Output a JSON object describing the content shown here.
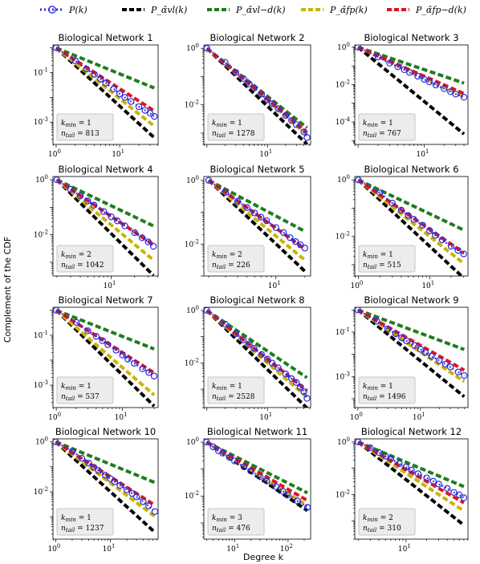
{
  "legend": {
    "labels": [
      "P(k)",
      "P_α̂vl(k)",
      "P_α̂vl−d(k)",
      "P_α̂fp(k)",
      "P_α̂fp−d(k)"
    ],
    "colors": [
      "#2b2bdf",
      "#000000",
      "#1e7d1e",
      "#c8b400",
      "#e0141e"
    ]
  },
  "ylabel": "Complement of the CDF",
  "xlabel": "Degree k",
  "chart_data": [
    {
      "type": "line",
      "title": "Biological Network 1",
      "kmin": 1,
      "ntail": 813,
      "kmax": 35,
      "ymin_log": -3.9,
      "yticks": [
        -1,
        -3
      ],
      "xticks": [
        0,
        1
      ],
      "slopes": {
        "data": -1.9,
        "vl": -2.35,
        "vld": -1.05,
        "fp": -2.05,
        "fpd": -1.65
      },
      "series": [
        {
          "name": "P(k)",
          "x": [
            1,
            2,
            3,
            4,
            5,
            6,
            8,
            10,
            12,
            15,
            20,
            25,
            30,
            35
          ],
          "y": [
            1.0,
            0.3,
            0.14,
            0.085,
            0.055,
            0.038,
            0.022,
            0.014,
            0.01,
            0.0068,
            0.0042,
            0.003,
            0.0023,
            0.0017
          ]
        }
      ]
    },
    {
      "type": "line",
      "title": "Biological Network 2",
      "kmin": 1,
      "ntail": 1278,
      "kmax": 45,
      "ymin_log": -3.4,
      "yticks": [
        0,
        -2
      ],
      "xticks": [
        1
      ],
      "slopes": {
        "data": -1.95,
        "vl": -2.05,
        "vld": -1.7,
        "fp": -1.85,
        "fpd": -1.8
      },
      "series": [
        {
          "name": "P(k)",
          "x": [
            1,
            2,
            3,
            4,
            5,
            6,
            8,
            10,
            12,
            15,
            20,
            25,
            30,
            40,
            45
          ],
          "y": [
            1.0,
            0.32,
            0.14,
            0.085,
            0.055,
            0.04,
            0.024,
            0.015,
            0.011,
            0.0073,
            0.0042,
            0.0028,
            0.002,
            0.0011,
            0.0007
          ]
        }
      ]
    },
    {
      "type": "line",
      "title": "Biological Network 3",
      "kmin": 1,
      "ntail": 767,
      "kmax": 40,
      "ymin_log": -5.2,
      "yticks": [
        0,
        -2,
        -4
      ],
      "xticks": [
        1
      ],
      "slopes": {
        "data": -1.6,
        "vl": -2.9,
        "vld": -1.2,
        "fp": -1.65,
        "fpd": -1.55
      },
      "series": [
        {
          "name": "P(k)",
          "x": [
            1,
            2,
            3,
            4,
            5,
            6,
            8,
            10,
            12,
            15,
            20,
            25,
            30,
            40
          ],
          "y": [
            1.0,
            0.3,
            0.14,
            0.09,
            0.062,
            0.045,
            0.028,
            0.019,
            0.014,
            0.0095,
            0.006,
            0.0042,
            0.0031,
            0.0021
          ]
        }
      ]
    },
    {
      "type": "line",
      "title": "Biological Network 4",
      "kmin": 2,
      "ntail": 1042,
      "kmax": 35,
      "ymin_log": -3.5,
      "yticks": [
        0,
        -2
      ],
      "xticks": [
        1
      ],
      "slopes": {
        "data": -1.95,
        "vl": -2.8,
        "vld": -1.35,
        "fp": -2.35,
        "fpd": -1.9
      },
      "series": [
        {
          "name": "P(k)",
          "x": [
            2,
            3,
            4,
            5,
            6,
            8,
            10,
            12,
            15,
            20,
            25,
            30,
            35
          ],
          "y": [
            1.0,
            0.45,
            0.26,
            0.17,
            0.12,
            0.07,
            0.045,
            0.032,
            0.021,
            0.012,
            0.0078,
            0.0055,
            0.0038
          ]
        }
      ]
    },
    {
      "type": "line",
      "title": "Biological Network 5",
      "kmin": 2,
      "ntail": 226,
      "kmax": 20,
      "ymin_log": -3.0,
      "yticks": [
        0,
        -2
      ],
      "xticks": [
        1
      ],
      "slopes": {
        "data": -2.2,
        "vl": -2.85,
        "vld": -1.6,
        "fp": -2.5,
        "fpd": -2.15
      },
      "series": [
        {
          "name": "P(k)",
          "x": [
            2,
            3,
            4,
            5,
            6,
            7,
            8,
            10,
            12,
            14,
            16,
            18,
            20
          ],
          "y": [
            1.0,
            0.42,
            0.22,
            0.14,
            0.095,
            0.07,
            0.054,
            0.033,
            0.023,
            0.016,
            0.012,
            0.0095,
            0.0075
          ]
        }
      ]
    },
    {
      "type": "line",
      "title": "Biological Network 6",
      "kmin": 1,
      "ntail": 515,
      "kmax": 30,
      "ymin_log": -3.4,
      "yticks": [
        0,
        -2
      ],
      "xticks": [
        0,
        1
      ],
      "slopes": {
        "data": -1.85,
        "vl": -2.35,
        "vld": -1.2,
        "fp": -2.0,
        "fpd": -1.75
      },
      "series": [
        {
          "name": "P(k)",
          "x": [
            1,
            2,
            3,
            4,
            5,
            6,
            8,
            10,
            12,
            15,
            20,
            25,
            30
          ],
          "y": [
            1.0,
            0.35,
            0.15,
            0.085,
            0.055,
            0.04,
            0.025,
            0.016,
            0.011,
            0.0075,
            0.0045,
            0.0032,
            0.0024
          ]
        }
      ]
    },
    {
      "type": "line",
      "title": "Biological Network 7",
      "kmin": 1,
      "ntail": 537,
      "kmax": 30,
      "ymin_log": -3.9,
      "yticks": [
        -1,
        -3
      ],
      "xticks": [
        0,
        1
      ],
      "slopes": {
        "data": -1.85,
        "vl": -2.6,
        "vld": -1.05,
        "fp": -2.3,
        "fpd": -1.7
      },
      "series": [
        {
          "name": "P(k)",
          "x": [
            1,
            2,
            3,
            4,
            5,
            6,
            8,
            10,
            12,
            15,
            20,
            25,
            30
          ],
          "y": [
            1.0,
            0.33,
            0.15,
            0.09,
            0.06,
            0.042,
            0.025,
            0.016,
            0.011,
            0.0075,
            0.0045,
            0.0032,
            0.0023
          ]
        }
      ]
    },
    {
      "type": "line",
      "title": "Biological Network 8",
      "kmin": 1,
      "ntail": 2528,
      "kmax": 45,
      "ymin_log": -3.7,
      "yticks": [
        0,
        -2
      ],
      "xticks": [
        1
      ],
      "slopes": {
        "data": -2.05,
        "vl": -2.25,
        "vld": -1.55,
        "fp": -2.0,
        "fpd": -1.85
      },
      "series": [
        {
          "name": "P(k)",
          "x": [
            1,
            2,
            3,
            4,
            5,
            6,
            8,
            10,
            12,
            15,
            20,
            25,
            30,
            35,
            40,
            45
          ],
          "y": [
            1.0,
            0.3,
            0.13,
            0.075,
            0.05,
            0.036,
            0.021,
            0.014,
            0.0098,
            0.0065,
            0.0038,
            0.0025,
            0.0018,
            0.0012,
            0.0008,
            0.00045
          ]
        }
      ]
    },
    {
      "type": "line",
      "title": "Biological Network 9",
      "kmin": 1,
      "ntail": 1496,
      "kmax": 50,
      "ymin_log": -4.4,
      "yticks": [
        -1,
        -3
      ],
      "xticks": [
        0,
        1
      ],
      "slopes": {
        "data": -1.75,
        "vl": -2.3,
        "vld": -1.05,
        "fp": -1.9,
        "fpd": -1.6
      },
      "series": [
        {
          "name": "P(k)",
          "x": [
            1,
            2,
            3,
            4,
            5,
            6,
            8,
            10,
            12,
            15,
            20,
            25,
            30,
            40,
            50
          ],
          "y": [
            1.0,
            0.31,
            0.14,
            0.085,
            0.056,
            0.04,
            0.025,
            0.017,
            0.012,
            0.0082,
            0.0052,
            0.0036,
            0.0027,
            0.0016,
            0.0011
          ]
        }
      ]
    },
    {
      "type": "line",
      "title": "Biological Network 10",
      "kmin": 1,
      "ntail": 1237,
      "kmax": 65,
      "ymin_log": -3.9,
      "yticks": [
        0,
        -2
      ],
      "xticks": [
        0,
        1
      ],
      "slopes": {
        "data": -1.45,
        "vl": -2.0,
        "vld": -0.9,
        "fp": -1.65,
        "fpd": -1.4
      },
      "series": [
        {
          "name": "P(k)",
          "x": [
            1,
            2,
            3,
            4,
            5,
            6,
            8,
            10,
            12,
            15,
            20,
            25,
            30,
            40,
            50,
            65
          ],
          "y": [
            1.0,
            0.42,
            0.22,
            0.14,
            0.095,
            0.072,
            0.046,
            0.033,
            0.025,
            0.018,
            0.012,
            0.0085,
            0.0063,
            0.004,
            0.0027,
            0.0016
          ]
        }
      ]
    },
    {
      "type": "line",
      "title": "Biological Network 11",
      "kmin": 3,
      "ntail": 476,
      "kmax": 230,
      "ymin_log": -3.6,
      "yticks": [
        0,
        -2
      ],
      "xticks": [
        1,
        2
      ],
      "slopes": {
        "data": -1.2,
        "vl": -1.35,
        "vld": -1.0,
        "fp": -1.25,
        "fpd": -1.15
      },
      "series": [
        {
          "name": "P(k)",
          "x": [
            3,
            4,
            5,
            6,
            8,
            10,
            15,
            20,
            30,
            40,
            60,
            80,
            100,
            150,
            230
          ],
          "y": [
            1.0,
            0.66,
            0.48,
            0.39,
            0.27,
            0.2,
            0.12,
            0.085,
            0.052,
            0.036,
            0.022,
            0.015,
            0.011,
            0.0065,
            0.0038
          ]
        }
      ]
    },
    {
      "type": "line",
      "title": "Biological Network 12",
      "kmin": 2,
      "ntail": 310,
      "kmax": 70,
      "ymin_log": -3.7,
      "yticks": [
        0,
        -2
      ],
      "xticks": [
        1
      ],
      "slopes": {
        "data": -1.35,
        "vl": -2.05,
        "vld": -1.1,
        "fp": -1.7,
        "fpd": -1.5
      },
      "series": [
        {
          "name": "P(k)",
          "x": [
            2,
            3,
            4,
            5,
            6,
            8,
            10,
            12,
            15,
            20,
            25,
            30,
            40,
            50,
            60,
            70
          ],
          "y": [
            1.0,
            0.6,
            0.4,
            0.29,
            0.23,
            0.15,
            0.11,
            0.085,
            0.062,
            0.043,
            0.032,
            0.025,
            0.017,
            0.012,
            0.0097,
            0.0075
          ]
        }
      ]
    }
  ]
}
